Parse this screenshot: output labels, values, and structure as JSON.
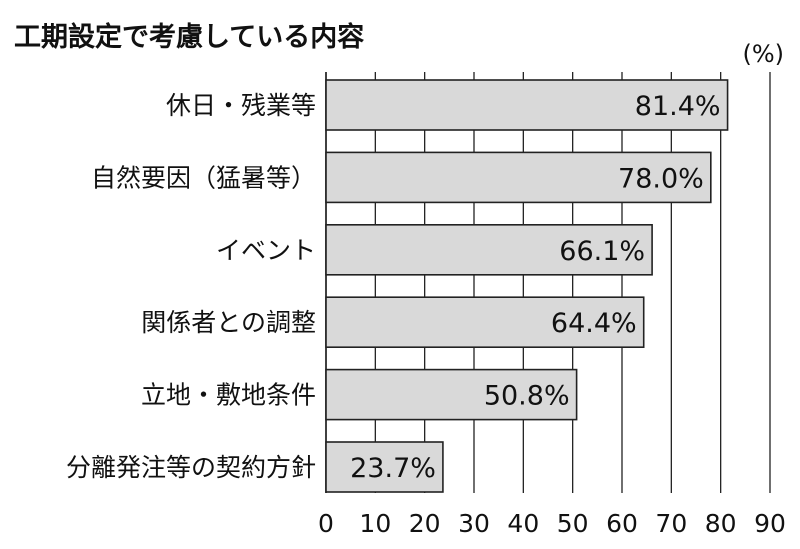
{
  "chart_data": {
    "type": "bar",
    "orientation": "horizontal",
    "title": "工期設定で考慮している内容",
    "unit": "(%)",
    "categories": [
      "休日・残業等",
      "自然要因（猛暑等）",
      "イベント",
      "関係者との調整",
      "立地・敷地条件",
      "分離発注等の契約方針"
    ],
    "values": [
      81.4,
      78.0,
      66.1,
      64.4,
      50.8,
      23.7
    ],
    "value_labels": [
      "81.4%",
      "78.0%",
      "66.1%",
      "64.4%",
      "50.8%",
      "23.7%"
    ],
    "xlim": [
      0,
      90
    ],
    "x_ticks": [
      0,
      10,
      20,
      30,
      40,
      50,
      60,
      70,
      80,
      90
    ],
    "grid": "vertical",
    "colors": {
      "bar_fill": "#d9d9d9",
      "bar_stroke": "#222222",
      "text": "#111111"
    }
  }
}
